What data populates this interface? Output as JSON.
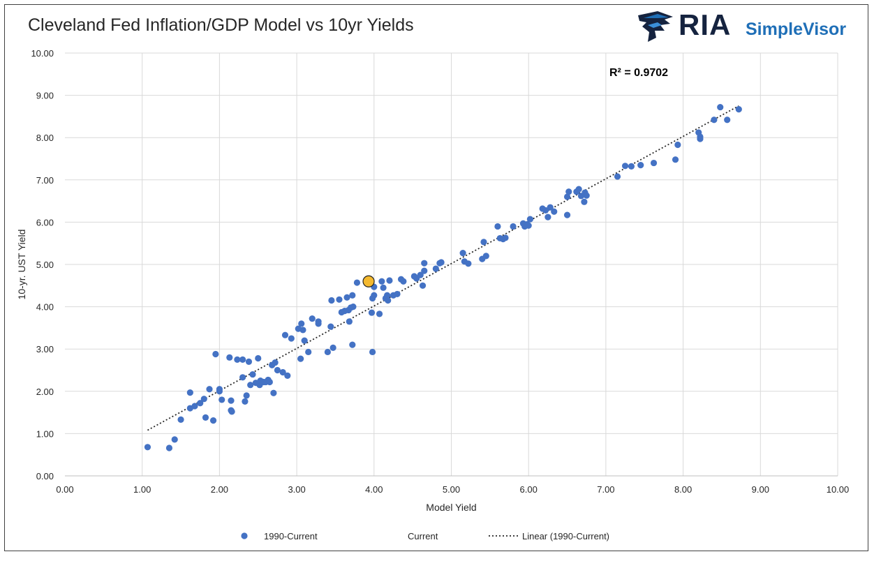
{
  "header": {
    "title": "Cleveland Fed Inflation/GDP Model vs 10yr Yields",
    "logo_ria": "RIA",
    "logo_simplevisor": "SimpleVisor",
    "brand_color": "#15233f",
    "accent_color": "#1f6fb7",
    "logo_icon": "eagle-head-icon"
  },
  "chart_data": {
    "type": "scatter",
    "xlabel": "Model Yield",
    "ylabel": "10-yr. UST Yield",
    "xlim": [
      0,
      10
    ],
    "ylim": [
      0,
      10
    ],
    "x_ticks": [
      "0.00",
      "1.00",
      "2.00",
      "3.00",
      "4.00",
      "5.00",
      "6.00",
      "7.00",
      "8.00",
      "9.00",
      "10.00"
    ],
    "y_ticks": [
      "0.00",
      "1.00",
      "2.00",
      "3.00",
      "4.00",
      "5.00",
      "6.00",
      "7.00",
      "8.00",
      "9.00",
      "10.00"
    ],
    "grid": true,
    "legend_placement": "bottom",
    "annotation": "R² = 0.9702",
    "series": [
      {
        "name": "1990-Current",
        "color": "#4472c4",
        "points": [
          [
            1.07,
            0.68
          ],
          [
            1.35,
            0.66
          ],
          [
            1.42,
            0.86
          ],
          [
            1.5,
            1.33
          ],
          [
            1.62,
            1.97
          ],
          [
            1.62,
            1.6
          ],
          [
            1.68,
            1.65
          ],
          [
            1.75,
            1.72
          ],
          [
            1.8,
            1.82
          ],
          [
            1.82,
            1.38
          ],
          [
            1.87,
            2.05
          ],
          [
            1.92,
            1.31
          ],
          [
            1.95,
            2.88
          ],
          [
            2.0,
            2.05
          ],
          [
            2.0,
            2.0
          ],
          [
            2.03,
            1.8
          ],
          [
            2.13,
            2.8
          ],
          [
            2.15,
            1.78
          ],
          [
            2.15,
            1.55
          ],
          [
            2.16,
            1.52
          ],
          [
            2.23,
            2.75
          ],
          [
            2.3,
            2.33
          ],
          [
            2.3,
            2.75
          ],
          [
            2.33,
            1.76
          ],
          [
            2.35,
            1.9
          ],
          [
            2.38,
            2.7
          ],
          [
            2.4,
            2.15
          ],
          [
            2.43,
            2.4
          ],
          [
            2.47,
            2.2
          ],
          [
            2.5,
            2.78
          ],
          [
            2.52,
            2.15
          ],
          [
            2.53,
            2.25
          ],
          [
            2.57,
            2.22
          ],
          [
            2.6,
            2.22
          ],
          [
            2.63,
            2.27
          ],
          [
            2.65,
            2.22
          ],
          [
            2.68,
            2.62
          ],
          [
            2.7,
            1.96
          ],
          [
            2.72,
            2.68
          ],
          [
            2.75,
            2.5
          ],
          [
            2.82,
            2.45
          ],
          [
            2.85,
            3.33
          ],
          [
            2.88,
            2.37
          ],
          [
            2.93,
            3.25
          ],
          [
            3.02,
            3.48
          ],
          [
            3.05,
            2.77
          ],
          [
            3.06,
            3.6
          ],
          [
            3.08,
            3.45
          ],
          [
            3.1,
            3.2
          ],
          [
            3.15,
            2.93
          ],
          [
            3.2,
            3.72
          ],
          [
            3.28,
            3.65
          ],
          [
            3.28,
            3.6
          ],
          [
            3.4,
            2.93
          ],
          [
            3.44,
            3.53
          ],
          [
            3.45,
            4.15
          ],
          [
            3.47,
            3.03
          ],
          [
            3.55,
            4.17
          ],
          [
            3.58,
            3.87
          ],
          [
            3.62,
            3.9
          ],
          [
            3.65,
            4.22
          ],
          [
            3.67,
            3.92
          ],
          [
            3.68,
            3.65
          ],
          [
            3.7,
            3.98
          ],
          [
            3.72,
            3.1
          ],
          [
            3.72,
            4.27
          ],
          [
            3.73,
            4.0
          ],
          [
            3.78,
            4.57
          ],
          [
            3.97,
            3.86
          ],
          [
            3.98,
            2.93
          ],
          [
            3.98,
            4.2
          ],
          [
            4.0,
            4.27
          ],
          [
            4.0,
            4.47
          ],
          [
            4.07,
            3.83
          ],
          [
            4.1,
            4.6
          ],
          [
            4.12,
            4.45
          ],
          [
            4.15,
            4.2
          ],
          [
            4.17,
            4.27
          ],
          [
            4.18,
            4.15
          ],
          [
            4.2,
            4.62
          ],
          [
            4.25,
            4.27
          ],
          [
            4.3,
            4.3
          ],
          [
            4.35,
            4.65
          ],
          [
            4.38,
            4.6
          ],
          [
            4.52,
            4.72
          ],
          [
            4.55,
            4.67
          ],
          [
            4.6,
            4.75
          ],
          [
            4.63,
            4.5
          ],
          [
            4.65,
            4.85
          ],
          [
            4.65,
            5.03
          ],
          [
            4.8,
            4.9
          ],
          [
            4.85,
            5.03
          ],
          [
            4.87,
            5.05
          ],
          [
            5.15,
            5.27
          ],
          [
            5.17,
            5.07
          ],
          [
            5.22,
            5.02
          ],
          [
            5.4,
            5.13
          ],
          [
            5.42,
            5.53
          ],
          [
            5.45,
            5.2
          ],
          [
            5.6,
            5.9
          ],
          [
            5.63,
            5.62
          ],
          [
            5.67,
            5.6
          ],
          [
            5.7,
            5.63
          ],
          [
            5.8,
            5.9
          ],
          [
            5.93,
            5.97
          ],
          [
            5.95,
            5.9
          ],
          [
            5.98,
            5.95
          ],
          [
            6.0,
            5.92
          ],
          [
            6.02,
            6.07
          ],
          [
            6.18,
            6.32
          ],
          [
            6.22,
            6.28
          ],
          [
            6.25,
            6.12
          ],
          [
            6.28,
            6.35
          ],
          [
            6.33,
            6.25
          ],
          [
            6.5,
            6.17
          ],
          [
            6.5,
            6.6
          ],
          [
            6.52,
            6.72
          ],
          [
            6.62,
            6.72
          ],
          [
            6.65,
            6.78
          ],
          [
            6.68,
            6.62
          ],
          [
            6.72,
            6.48
          ],
          [
            6.73,
            6.7
          ],
          [
            6.75,
            6.63
          ],
          [
            7.15,
            7.08
          ],
          [
            7.25,
            7.33
          ],
          [
            7.33,
            7.32
          ],
          [
            7.45,
            7.35
          ],
          [
            7.62,
            7.4
          ],
          [
            7.9,
            7.48
          ],
          [
            7.93,
            7.83
          ],
          [
            8.2,
            8.12
          ],
          [
            8.22,
            8.02
          ],
          [
            8.22,
            7.97
          ],
          [
            8.4,
            8.42
          ],
          [
            8.48,
            8.72
          ],
          [
            8.57,
            8.42
          ],
          [
            8.72,
            8.67
          ]
        ]
      },
      {
        "name": "Current",
        "color": "#f4b92f",
        "points": [
          [
            3.93,
            4.6
          ]
        ]
      },
      {
        "name": "Linear (1990-Current)",
        "color": "#262626",
        "line": [
          [
            1.07,
            1.08
          ],
          [
            8.72,
            8.75
          ]
        ]
      }
    ]
  }
}
